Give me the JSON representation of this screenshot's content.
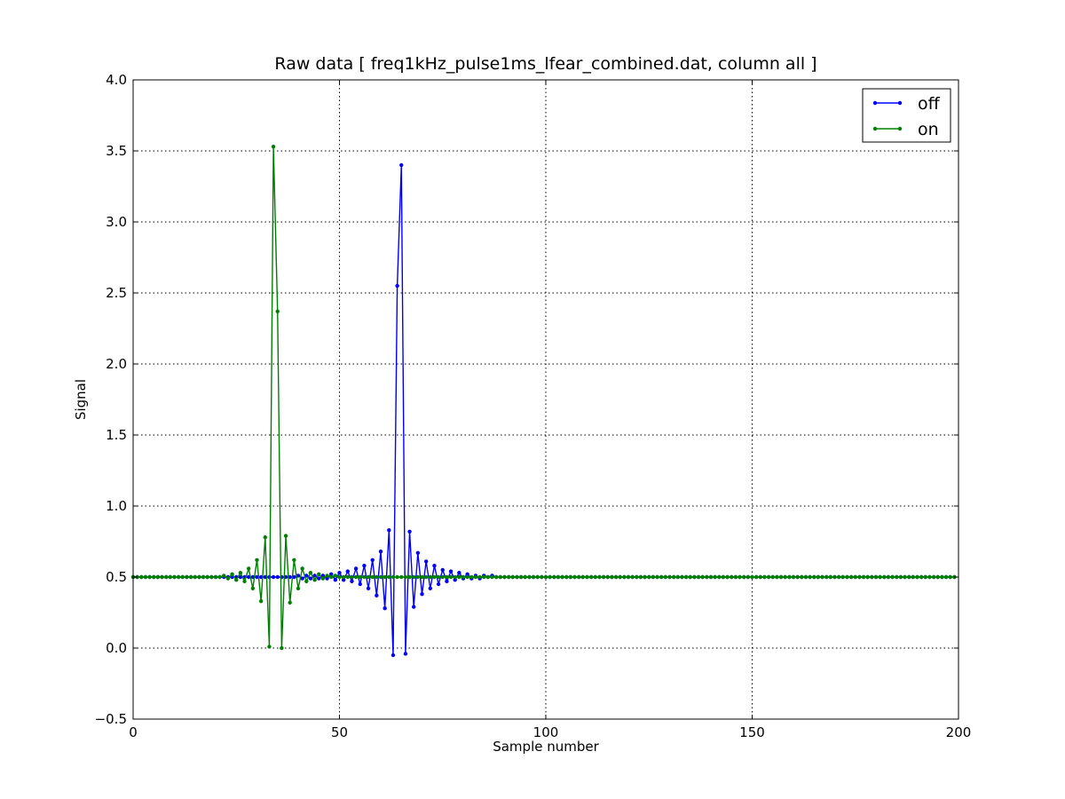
{
  "chart_data": {
    "type": "line",
    "title": "Raw data  [ freq1kHz_pulse1ms_lfear_combined.dat, column all ]",
    "xlabel": "Sample number",
    "ylabel": "Signal",
    "xlim": [
      0,
      200
    ],
    "ylim": [
      -0.5,
      4.0
    ],
    "x_ticks": [
      0,
      50,
      100,
      150,
      200
    ],
    "x_tick_labels": [
      "0",
      "50",
      "100",
      "150",
      "200"
    ],
    "y_ticks": [
      -0.5,
      0.0,
      0.5,
      1.0,
      1.5,
      2.0,
      2.5,
      3.0,
      3.5,
      4.0
    ],
    "y_tick_labels": [
      "−0.5",
      "0.0",
      "0.5",
      "1.0",
      "1.5",
      "2.0",
      "2.5",
      "3.0",
      "3.5",
      "4.0"
    ],
    "grid": true,
    "legend_position": "top-right",
    "x_start": 0,
    "x_step": 1,
    "baseline": 0.5,
    "series": [
      {
        "name": "off",
        "color": "#0000ff",
        "marker": "dot",
        "baseline": 0.5,
        "deviations": {
          "40": 0.51,
          "41": 0.49,
          "42": 0.51,
          "43": 0.49,
          "44": 0.51,
          "45": 0.49,
          "46": 0.51,
          "47": 0.49,
          "48": 0.52,
          "49": 0.48,
          "50": 0.53,
          "51": 0.48,
          "52": 0.54,
          "53": 0.47,
          "54": 0.56,
          "55": 0.45,
          "56": 0.58,
          "57": 0.42,
          "58": 0.62,
          "59": 0.37,
          "60": 0.68,
          "61": 0.28,
          "62": 0.83,
          "63": -0.05,
          "64": 2.55,
          "65": 3.4,
          "66": -0.04,
          "67": 0.82,
          "68": 0.29,
          "69": 0.67,
          "70": 0.38,
          "71": 0.61,
          "72": 0.42,
          "73": 0.58,
          "74": 0.45,
          "75": 0.55,
          "76": 0.47,
          "77": 0.54,
          "78": 0.48,
          "79": 0.53,
          "80": 0.49,
          "81": 0.52,
          "82": 0.49,
          "83": 0.51,
          "84": 0.49,
          "85": 0.51,
          "86": 0.5,
          "87": 0.51
        }
      },
      {
        "name": "on",
        "color": "#008000",
        "marker": "dot",
        "baseline": 0.5,
        "deviations": {
          "22": 0.51,
          "23": 0.49,
          "24": 0.52,
          "25": 0.48,
          "26": 0.53,
          "27": 0.47,
          "28": 0.56,
          "29": 0.42,
          "30": 0.62,
          "31": 0.33,
          "32": 0.78,
          "33": 0.01,
          "34": 3.53,
          "35": 2.37,
          "36": 0.0,
          "37": 0.79,
          "38": 0.32,
          "39": 0.62,
          "40": 0.42,
          "41": 0.56,
          "42": 0.47,
          "43": 0.53,
          "44": 0.48,
          "45": 0.52,
          "46": 0.49,
          "47": 0.51,
          "48": 0.5,
          "49": 0.51
        }
      }
    ]
  }
}
